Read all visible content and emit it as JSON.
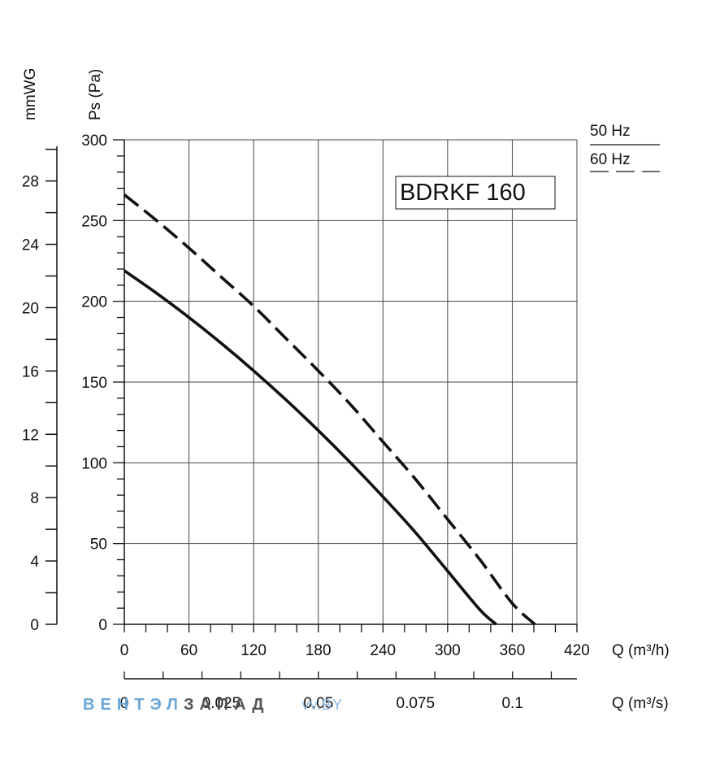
{
  "chart_data": {
    "type": "line",
    "title": "BDRKF 160",
    "ylabel": "Ps (Pa)",
    "ylabel_secondary": "mmWG",
    "xlabel": "Q (m³/h)",
    "xlabel_secondary": "Q (m³/s)",
    "xlim": [
      0,
      420
    ],
    "ylim": [
      0,
      300
    ],
    "ylim_secondary": [
      0,
      30.6
    ],
    "x_ticks": [
      "0",
      "60",
      "120",
      "180",
      "240",
      "300",
      "360",
      "420"
    ],
    "y_ticks": [
      "0",
      "50",
      "100",
      "150",
      "200",
      "250",
      "300"
    ],
    "y2_ticks": [
      "0",
      "4",
      "8",
      "12",
      "16",
      "20",
      "24",
      "28"
    ],
    "x2_ticks": [
      "0",
      "0.025",
      "0.05",
      "0.075",
      "0.1"
    ],
    "grid": true,
    "legend": {
      "placement": "top-right",
      "items": [
        "50 Hz",
        "60 Hz"
      ]
    },
    "series": [
      {
        "name": "50 Hz",
        "style": "solid",
        "x": [
          0,
          30,
          60,
          90,
          120,
          150,
          180,
          210,
          240,
          270,
          300,
          330,
          345
        ],
        "y": [
          219,
          205,
          190,
          174,
          157,
          139,
          120,
          100,
          79,
          57,
          33,
          9,
          0
        ]
      },
      {
        "name": "60 Hz",
        "style": "dashed",
        "x": [
          0,
          30,
          60,
          90,
          120,
          150,
          180,
          210,
          240,
          270,
          300,
          330,
          360,
          381
        ],
        "y": [
          266,
          250,
          233,
          215,
          197,
          177,
          157,
          136,
          113,
          90,
          65,
          40,
          13,
          0
        ]
      }
    ]
  },
  "watermark": {
    "part1": "ВЕНТЭЛ",
    "part2": "ЗАПАД",
    "part3": "vv.BY"
  }
}
